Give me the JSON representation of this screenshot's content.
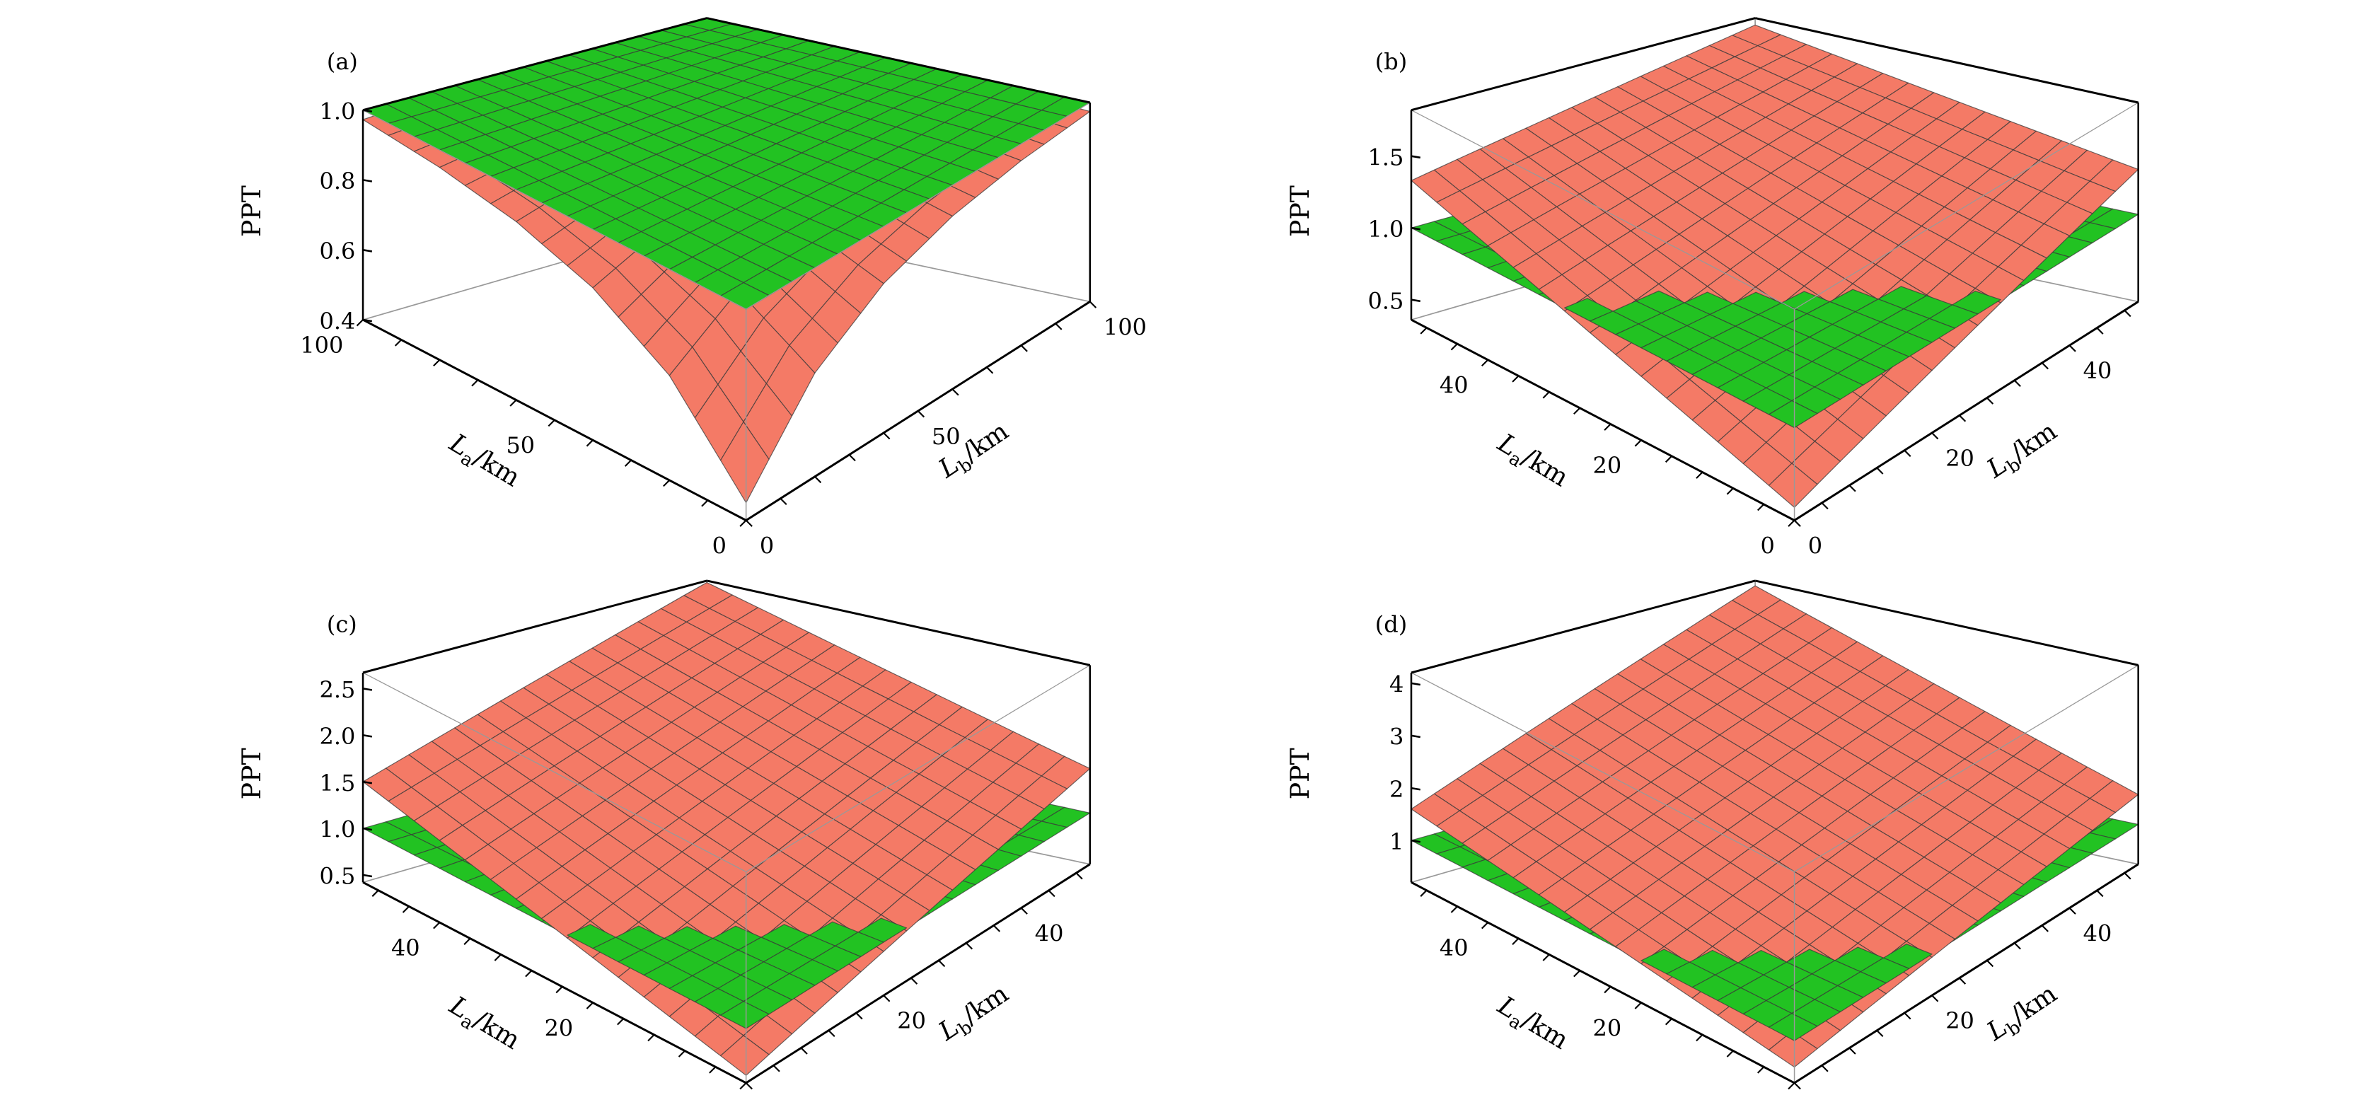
{
  "colors": {
    "surface_1": "#f47a66",
    "surface_2": "#22c222",
    "mesh": "#3a3a3a",
    "box": "#000000",
    "back_edge": "#999999"
  },
  "chart_data": [
    {
      "type": "surface",
      "panel_label": "(a)",
      "xlabel": {
        "main": "L",
        "sub": "a",
        "unit": "/km"
      },
      "ylabel": {
        "main": "L",
        "sub": "b",
        "unit": "/km"
      },
      "zlabel": "PPT",
      "xlim": [
        0,
        100
      ],
      "ylim": [
        0,
        100
      ],
      "zlim": [
        0.4,
        1.0
      ],
      "xticks": [
        0,
        50,
        100
      ],
      "xtick_labels": [
        "0",
        "50",
        "100"
      ],
      "yticks": [
        0,
        50,
        100
      ],
      "ytick_labels": [
        "0",
        "50",
        "100"
      ],
      "zticks": [
        0.4,
        0.6,
        0.8,
        1.0
      ],
      "ztick_labels": [
        "0.4",
        "0.6",
        "0.8",
        "1.0"
      ],
      "grid_x": [
        0,
        20,
        40,
        60,
        80,
        100
      ],
      "grid_y": [
        0,
        20,
        40,
        60,
        80,
        100
      ],
      "surfaces": [
        {
          "color": "#f47a66",
          "z": [
            [
              0.45,
              0.698,
              0.834,
              0.909,
              0.95,
              0.973
            ],
            [
              0.698,
              0.834,
              0.909,
              0.95,
              0.973,
              0.985
            ],
            [
              0.834,
              0.909,
              0.95,
              0.973,
              0.985,
              0.992
            ],
            [
              0.909,
              0.95,
              0.973,
              0.985,
              0.992,
              0.995
            ],
            [
              0.95,
              0.973,
              0.985,
              0.992,
              0.995,
              0.998
            ],
            [
              0.973,
              0.985,
              0.992,
              0.995,
              0.998,
              0.999
            ]
          ]
        },
        {
          "color": "#22c222",
          "constant": 1.0
        }
      ]
    },
    {
      "type": "surface",
      "panel_label": "(b)",
      "xlabel": {
        "main": "L",
        "sub": "a",
        "unit": "/km"
      },
      "ylabel": {
        "main": "L",
        "sub": "b",
        "unit": "/km"
      },
      "zlabel": "PPT",
      "xlim": [
        0,
        50
      ],
      "ylim": [
        0,
        50
      ],
      "zlim": [
        0.36,
        1.82
      ],
      "xticks": [
        0,
        20,
        40
      ],
      "xtick_labels": [
        "0",
        "20",
        "40"
      ],
      "yticks": [
        0,
        20,
        40
      ],
      "ytick_labels": [
        "0",
        "20",
        "40"
      ],
      "zticks": [
        0.5,
        1.0,
        1.5
      ],
      "ztick_labels": [
        "0.5",
        "1.0",
        "1.5"
      ],
      "grid_x": [
        0,
        10,
        20,
        30,
        40,
        50
      ],
      "grid_y": [
        0,
        10,
        20,
        30,
        40,
        50
      ],
      "surfaces": [
        {
          "color": "#f47a66",
          "z": [
            [
              0.45,
              0.626,
              0.802,
              0.978,
              1.154,
              1.33
            ],
            [
              0.626,
              0.784,
              0.943,
              1.101,
              1.26,
              1.418
            ],
            [
              0.802,
              0.943,
              1.084,
              1.224,
              1.365,
              1.506
            ],
            [
              0.978,
              1.101,
              1.224,
              1.348,
              1.471,
              1.594
            ],
            [
              1.154,
              1.26,
              1.365,
              1.471,
              1.576,
              1.682
            ],
            [
              1.33,
              1.418,
              1.506,
              1.594,
              1.682,
              1.77
            ]
          ]
        },
        {
          "color": "#22c222",
          "constant": 1.0
        }
      ]
    },
    {
      "type": "surface",
      "panel_label": "(c)",
      "xlabel": {
        "main": "L",
        "sub": "a",
        "unit": "/km"
      },
      "ylabel": {
        "main": "L",
        "sub": "b",
        "unit": "/km"
      },
      "zlabel": "PPT",
      "xlim": [
        0,
        50
      ],
      "ylim": [
        0,
        50
      ],
      "zlim": [
        0.42,
        2.67
      ],
      "xticks": [
        0,
        20,
        40
      ],
      "xtick_labels": [
        "0",
        "20",
        "40"
      ],
      "yticks": [
        0,
        20,
        40
      ],
      "ytick_labels": [
        "0",
        "20",
        "40"
      ],
      "zticks": [
        0.5,
        1.0,
        1.5,
        2.0,
        2.5
      ],
      "ztick_labels": [
        "0.5",
        "1.0",
        "1.5",
        "2.0",
        "2.5"
      ],
      "grid_x": [
        0,
        10,
        20,
        30,
        40,
        50
      ],
      "grid_y": [
        0,
        10,
        20,
        30,
        40,
        50
      ],
      "surfaces": [
        {
          "color": "#f47a66",
          "z": [
            [
              0.5,
              0.7,
              0.9,
              1.1,
              1.3,
              1.5
            ],
            [
              0.7,
              0.906,
              1.112,
              1.318,
              1.524,
              1.73
            ],
            [
              0.9,
              1.112,
              1.324,
              1.536,
              1.748,
              1.96
            ],
            [
              1.1,
              1.318,
              1.536,
              1.754,
              1.972,
              2.19
            ],
            [
              1.3,
              1.524,
              1.748,
              1.972,
              2.196,
              2.42
            ],
            [
              1.5,
              1.73,
              1.96,
              2.19,
              2.42,
              2.65
            ]
          ]
        },
        {
          "color": "#22c222",
          "constant": 1.0
        }
      ]
    },
    {
      "type": "surface",
      "panel_label": "(d)",
      "xlabel": {
        "main": "L",
        "sub": "a",
        "unit": "/km"
      },
      "ylabel": {
        "main": "L",
        "sub": "b",
        "unit": "/km"
      },
      "zlabel": "PPT",
      "xlim": [
        0,
        50
      ],
      "ylim": [
        0,
        50
      ],
      "zlim": [
        0.2,
        4.2
      ],
      "xticks": [
        0,
        20,
        40
      ],
      "xtick_labels": [
        "0",
        "20",
        "40"
      ],
      "yticks": [
        0,
        20,
        40
      ],
      "ytick_labels": [
        "0",
        "20",
        "40"
      ],
      "zticks": [
        1,
        2,
        3,
        4
      ],
      "ztick_labels": [
        "1",
        "2",
        "3",
        "4"
      ],
      "grid_x": [
        0,
        10,
        20,
        30,
        40,
        50
      ],
      "grid_y": [
        0,
        10,
        20,
        30,
        40,
        50
      ],
      "surfaces": [
        {
          "color": "#f47a66",
          "z": [
            [
              0.5,
              0.72,
              0.94,
              1.16,
              1.38,
              1.6
            ],
            [
              0.72,
              0.996,
              1.272,
              1.548,
              1.824,
              2.1
            ],
            [
              0.94,
              1.272,
              1.604,
              1.936,
              2.268,
              2.6
            ],
            [
              1.16,
              1.548,
              1.936,
              2.324,
              2.712,
              3.1
            ],
            [
              1.38,
              1.824,
              2.268,
              2.712,
              3.156,
              3.6
            ],
            [
              1.6,
              2.1,
              2.6,
              3.1,
              3.6,
              4.1
            ]
          ]
        },
        {
          "color": "#22c222",
          "constant": 1.0
        }
      ]
    }
  ]
}
